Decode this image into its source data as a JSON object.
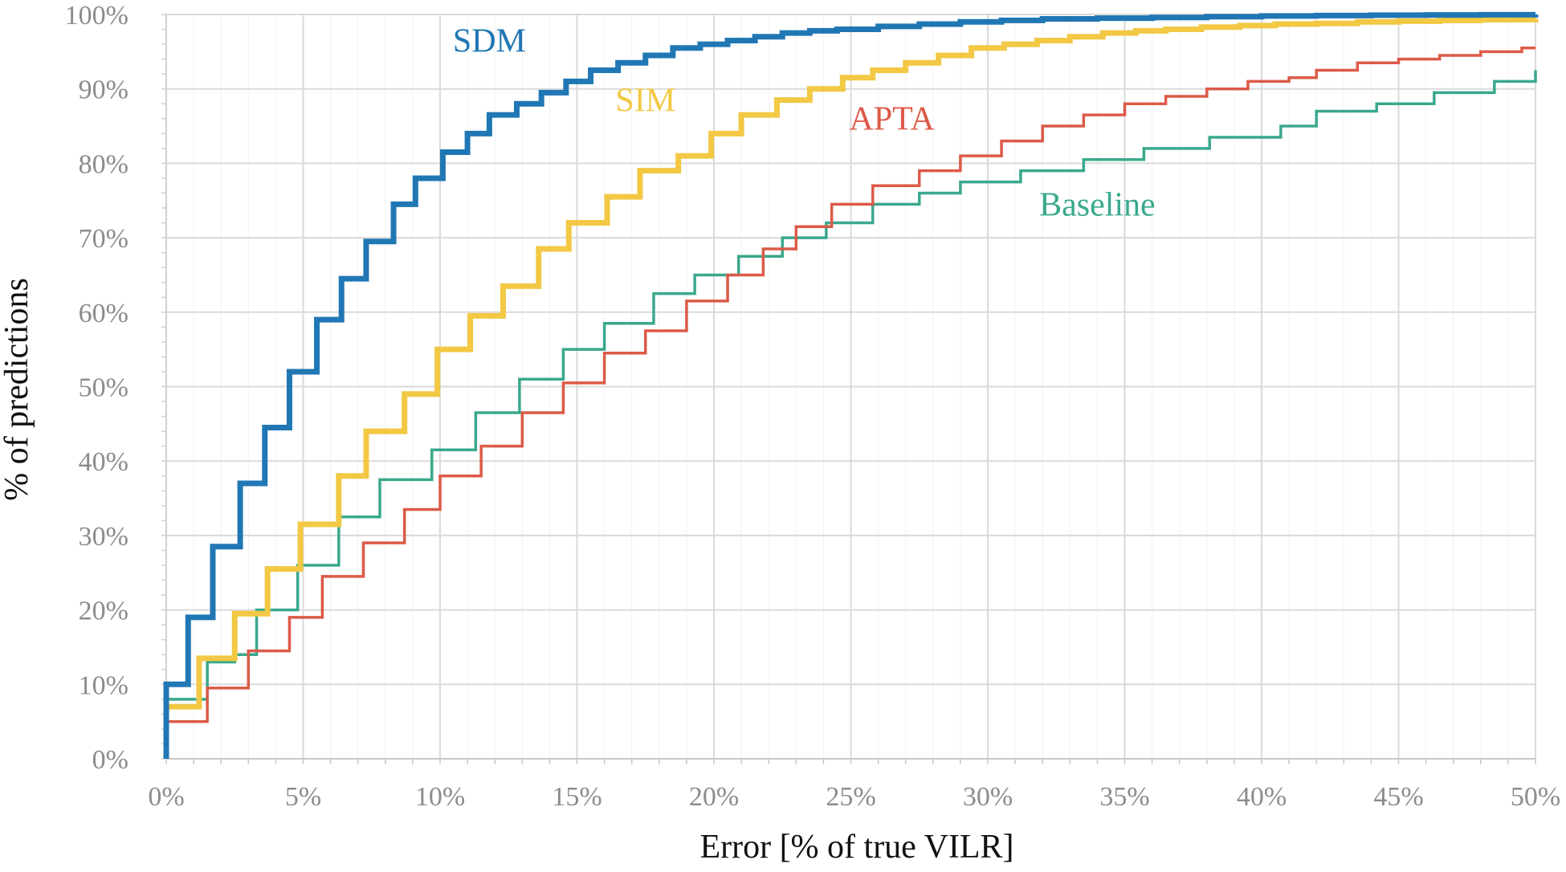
{
  "chart_data": {
    "type": "line",
    "step": true,
    "xlabel": "Error [% of true VILR]",
    "ylabel": "% of predictions",
    "xlim": [
      0,
      50
    ],
    "ylim": [
      0,
      100
    ],
    "x_ticks": [
      0,
      5,
      10,
      15,
      20,
      25,
      30,
      35,
      40,
      45,
      50
    ],
    "x_tick_labels": [
      "0%",
      "5%",
      "10%",
      "15%",
      "20%",
      "25%",
      "30%",
      "35%",
      "40%",
      "45%",
      "50%"
    ],
    "y_ticks": [
      0,
      10,
      20,
      30,
      40,
      50,
      60,
      70,
      80,
      90,
      100
    ],
    "y_tick_labels": [
      "0%",
      "10%",
      "20%",
      "30%",
      "40%",
      "50%",
      "60%",
      "70%",
      "80%",
      "90%",
      "100%"
    ],
    "grid": true,
    "series": [
      {
        "name": "Baseline",
        "label": "Baseline",
        "color": "#3aa88c",
        "weight": "thin",
        "label_at": [
          34,
          73
        ],
        "x": [
          0,
          1.5,
          2.5,
          3.3,
          4.8,
          6.3,
          7.8,
          9.7,
          11.3,
          12.9,
          14.5,
          16,
          17.8,
          19.3,
          20.9,
          22.5,
          24.1,
          25.8,
          27.5,
          29,
          31.2,
          33.5,
          35.7,
          38.1,
          40.7,
          42,
          44.2,
          46.3,
          48.5,
          50
        ],
        "y": [
          8,
          13,
          14,
          20,
          26,
          32.5,
          37.5,
          41.5,
          46.5,
          51,
          55,
          58.5,
          62.5,
          65,
          67.5,
          70,
          72,
          74.5,
          76,
          77.5,
          79,
          80.5,
          82,
          83.5,
          85,
          87,
          88,
          89.5,
          91,
          92.5
        ]
      },
      {
        "name": "APTA",
        "label": "APTA",
        "color": "#dc5a48",
        "weight": "thin",
        "label_at": [
          26.5,
          84.5
        ],
        "x": [
          0,
          1.5,
          3,
          4.5,
          5.7,
          7.2,
          8.7,
          10,
          11.5,
          13,
          14.5,
          16,
          17.5,
          19,
          20.5,
          21.8,
          23,
          24.3,
          25.8,
          27.5,
          29,
          30.5,
          32,
          33.5,
          35,
          36.5,
          38,
          39.5,
          41,
          42,
          43.5,
          45,
          46.5,
          48,
          49.5
        ],
        "y": [
          5,
          9.5,
          14.5,
          19,
          24.5,
          29,
          33.5,
          38,
          42,
          46.5,
          50.5,
          54.5,
          57.5,
          61.5,
          65,
          68.5,
          71.5,
          74.5,
          77,
          79,
          81,
          83,
          85,
          86.5,
          88,
          89,
          90,
          91,
          91.5,
          92.5,
          93.5,
          94,
          94.5,
          95,
          95.5
        ]
      },
      {
        "name": "SIM",
        "label": "SIM",
        "color": "#f2c844",
        "weight": "thick",
        "label_at": [
          17.5,
          87
        ],
        "x": [
          0,
          1.2,
          2.5,
          3.7,
          4.9,
          6.3,
          7.3,
          8.7,
          9.9,
          11.1,
          12.3,
          13.6,
          14.7,
          16.1,
          17.3,
          18.7,
          19.9,
          21,
          22.3,
          23.5,
          24.7,
          25.8,
          27,
          28.2,
          29.4,
          30.6,
          31.8,
          33,
          34.2,
          35.4,
          36.5,
          37.8,
          39.2,
          40.5,
          42,
          43.5,
          45,
          46.5,
          48,
          50
        ],
        "y": [
          7,
          13.5,
          19.5,
          25.5,
          31.5,
          38,
          44,
          49,
          55,
          59.5,
          63.5,
          68.5,
          72,
          75.5,
          79,
          81,
          84,
          86.5,
          88.5,
          90,
          91.5,
          92.5,
          93.5,
          94.5,
          95.5,
          96,
          96.5,
          97,
          97.5,
          97.8,
          98,
          98.3,
          98.5,
          98.7,
          98.8,
          99,
          99.1,
          99.2,
          99.3,
          99.4
        ]
      },
      {
        "name": "SDM",
        "label": "SDM",
        "color": "#2077b4",
        "weight": "thick",
        "label_at": [
          11.8,
          95
        ],
        "x": [
          0,
          0.8,
          1.7,
          2.7,
          3.6,
          4.5,
          5.5,
          6.4,
          7.3,
          8.3,
          9.1,
          10.1,
          11,
          11.8,
          12.8,
          13.7,
          14.6,
          15.5,
          16.5,
          17.5,
          18.5,
          19.5,
          20.5,
          21.5,
          22.5,
          23.5,
          24.5,
          26,
          27.5,
          29,
          30.5,
          32,
          34,
          36,
          38,
          40,
          42,
          44,
          46,
          48,
          50
        ],
        "y": [
          10,
          19,
          28.5,
          37,
          44.5,
          52,
          59,
          64.5,
          69.5,
          74.5,
          78,
          81.5,
          84,
          86.5,
          88,
          89.5,
          91,
          92.5,
          93.5,
          94.5,
          95.5,
          96,
          96.5,
          97,
          97.5,
          97.8,
          98,
          98.4,
          98.7,
          99,
          99.2,
          99.4,
          99.5,
          99.6,
          99.7,
          99.8,
          99.85,
          99.9,
          99.93,
          99.96,
          100
        ]
      }
    ]
  }
}
